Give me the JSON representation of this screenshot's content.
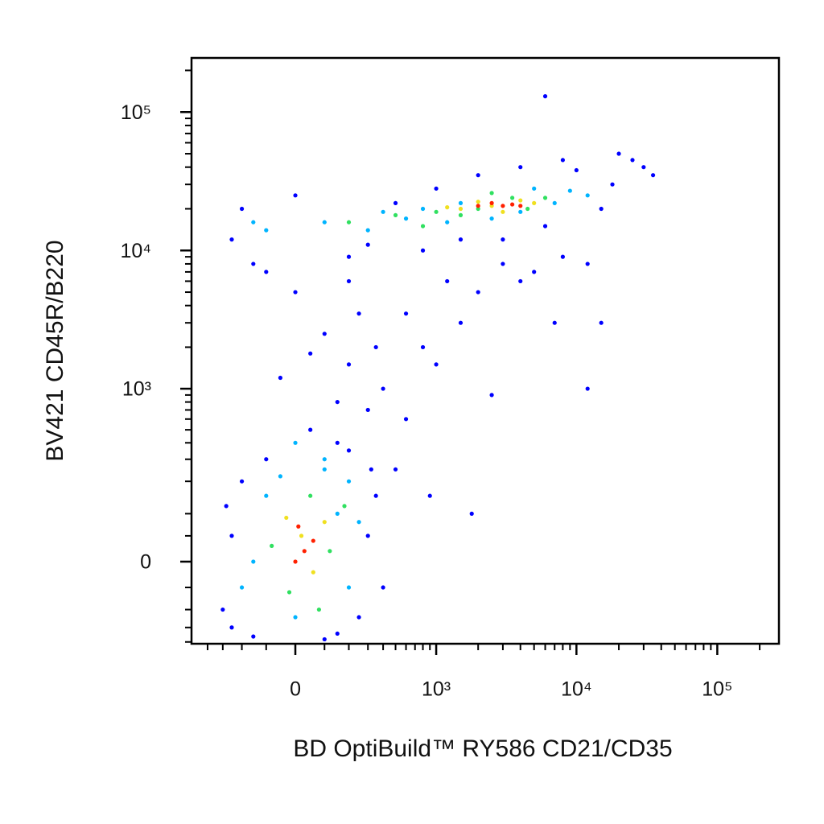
{
  "chart_data": {
    "type": "scatter",
    "scale": "biexponential",
    "x_label": "BD OptiBuild™ RY586 CD21/CD35",
    "y_label": "BV421 CD45R/B220",
    "xlim": [
      -533,
      274000
    ],
    "ylim": [
      -207,
      246000
    ],
    "xticks": [
      0,
      {
        "value": 1000,
        "label": "10³"
      },
      {
        "value": 10000,
        "label": "10⁴"
      },
      {
        "value": 100000,
        "label": "10⁵"
      }
    ],
    "yticks": [
      0,
      {
        "value": 1000,
        "label": "10³"
      },
      {
        "value": 10000,
        "label": "10⁴"
      },
      {
        "value": 100000,
        "label": "10⁵"
      }
    ],
    "xminorticks": [
      -400,
      -300,
      -200,
      -100,
      100,
      200,
      300,
      400,
      500,
      600,
      700,
      800,
      900,
      2000,
      3000,
      4000,
      5000,
      6000,
      7000,
      8000,
      9000,
      20000,
      30000,
      40000,
      50000,
      60000,
      70000,
      80000,
      90000,
      200000
    ],
    "yminorticks": [
      -200,
      -150,
      -100,
      -50,
      50,
      100,
      200,
      300,
      400,
      500,
      600,
      700,
      800,
      900,
      2000,
      3000,
      4000,
      5000,
      6000,
      7000,
      8000,
      9000,
      20000,
      30000,
      40000,
      50000,
      60000,
      70000,
      80000,
      90000,
      200000
    ],
    "series": [
      {
        "color": "#0000ff",
        "x": [
          -300,
          -250,
          -200,
          -150,
          -100,
          150,
          250,
          300,
          350,
          200,
          -250,
          400,
          -280,
          100,
          320,
          50,
          150,
          -50,
          200,
          100,
          250,
          0,
          300,
          350,
          -100,
          200,
          150,
          50,
          400,
          600,
          1000,
          1500,
          2000,
          800,
          3000,
          5000,
          8000,
          12000,
          7000,
          15000,
          2500,
          600,
          1200,
          500,
          900,
          1800,
          4000,
          -200,
          -250,
          -150,
          0,
          200,
          500,
          300,
          1000,
          800,
          2000,
          1500,
          4000,
          3000,
          6000,
          8000,
          10000,
          15000,
          20000,
          25000,
          30000,
          35000,
          12000,
          18000,
          6000
        ],
        "y": [
          -100,
          50,
          200,
          -180,
          300,
          -170,
          -120,
          50,
          150,
          350,
          -150,
          -50,
          120,
          -190,
          250,
          500,
          800,
          1200,
          1500,
          2500,
          3500,
          5000,
          700,
          2000,
          7000,
          6000,
          400,
          1800,
          1000,
          600,
          1500,
          3000,
          5000,
          2000,
          8000,
          7000,
          9000,
          1000,
          3000,
          3000,
          900,
          3500,
          6000,
          250,
          150,
          100,
          6000,
          20000,
          12000,
          8000,
          25000,
          9000,
          22000,
          11000,
          28000,
          10000,
          35000,
          12000,
          40000,
          12000,
          15000,
          45000,
          38000,
          20000,
          50000,
          45000,
          40000,
          35000,
          8000,
          30000,
          130000
        ]
      },
      {
        "color": "#00b4ff",
        "x": [
          -150,
          -100,
          150,
          200,
          0,
          -50,
          250,
          100,
          -200,
          -100,
          100,
          300,
          600,
          800,
          1200,
          1500,
          2500,
          4000,
          5000,
          7000,
          9000,
          12000,
          -150,
          400,
          100,
          200,
          0
        ],
        "y": [
          0,
          150,
          100,
          -50,
          -120,
          220,
          80,
          250,
          -50,
          14000,
          16000,
          14000,
          17000,
          20000,
          16000,
          22000,
          17000,
          19000,
          28000,
          22000,
          27000,
          25000,
          16000,
          19000,
          300,
          200,
          400
        ]
      },
      {
        "color": "#30e060",
        "x": [
          -80,
          50,
          120,
          -20,
          80,
          180,
          200,
          500,
          1000,
          2000,
          3500,
          6000,
          800,
          1500,
          4500,
          2500
        ],
        "y": [
          30,
          150,
          20,
          -60,
          -100,
          120,
          16000,
          18000,
          19000,
          20000,
          24000,
          24000,
          15000,
          18000,
          20000,
          26000
        ]
      },
      {
        "color": "#f0e020",
        "x": [
          20,
          60,
          -30,
          100,
          1500,
          2500,
          3000,
          4000,
          5000,
          2000,
          1200
        ],
        "y": [
          50,
          -20,
          90,
          80,
          20000,
          21000,
          19000,
          23000,
          22000,
          22500,
          20500
        ]
      },
      {
        "color": "#ff2000",
        "x": [
          30,
          60,
          10,
          0,
          2500,
          3000,
          2000,
          3500,
          4000
        ],
        "y": [
          20,
          40,
          70,
          0,
          22000,
          21000,
          21000,
          21500,
          21000
        ]
      }
    ]
  }
}
